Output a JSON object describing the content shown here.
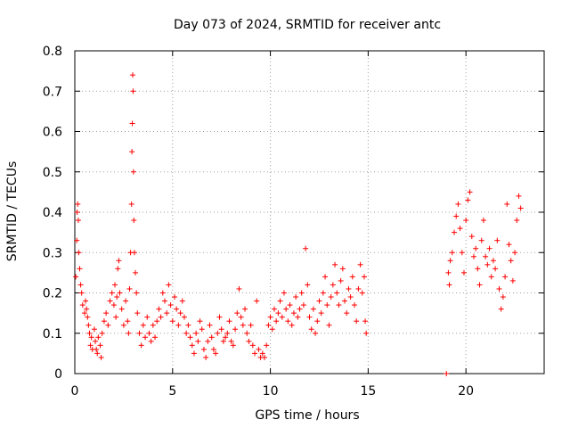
{
  "chart_data": {
    "type": "scatter",
    "title": "Day 073 of 2024, SRMTID for receiver antc",
    "xlabel": "GPS time / hours",
    "ylabel": "SRMTID / TECUs",
    "xlim": [
      0,
      24
    ],
    "ylim": [
      0,
      0.8
    ],
    "x_ticks": [
      0,
      5,
      10,
      15,
      20
    ],
    "y_ticks": [
      0,
      0.1,
      0.2,
      0.3,
      0.4,
      0.5,
      0.6,
      0.7,
      0.8
    ],
    "x_tick_labels": [
      "0",
      "5",
      "10",
      "15",
      "20"
    ],
    "y_tick_labels": [
      "0",
      "0.1",
      "0.2",
      "0.3",
      "0.4",
      "0.5",
      "0.6",
      "0.7",
      "0.8"
    ],
    "grid": true,
    "marker": "+",
    "color": "#ff0000",
    "series": [
      {
        "name": "SRMTID",
        "points": [
          [
            0.05,
            0.24
          ],
          [
            0.1,
            0.33
          ],
          [
            0.12,
            0.4
          ],
          [
            0.15,
            0.42
          ],
          [
            0.18,
            0.38
          ],
          [
            0.2,
            0.3
          ],
          [
            0.25,
            0.26
          ],
          [
            0.3,
            0.22
          ],
          [
            0.35,
            0.2
          ],
          [
            0.4,
            0.17
          ],
          [
            0.5,
            0.15
          ],
          [
            0.55,
            0.18
          ],
          [
            0.6,
            0.16
          ],
          [
            0.65,
            0.14
          ],
          [
            0.7,
            0.12
          ],
          [
            0.75,
            0.1
          ],
          [
            0.8,
            0.07
          ],
          [
            0.85,
            0.09
          ],
          [
            0.9,
            0.06
          ],
          [
            1.0,
            0.11
          ],
          [
            1.05,
            0.08
          ],
          [
            1.1,
            0.06
          ],
          [
            1.15,
            0.05
          ],
          [
            1.2,
            0.09
          ],
          [
            1.3,
            0.07
          ],
          [
            1.35,
            0.04
          ],
          [
            1.4,
            0.1
          ],
          [
            1.5,
            0.13
          ],
          [
            1.6,
            0.15
          ],
          [
            1.7,
            0.12
          ],
          [
            1.8,
            0.18
          ],
          [
            1.9,
            0.2
          ],
          [
            2.0,
            0.17
          ],
          [
            2.05,
            0.22
          ],
          [
            2.1,
            0.14
          ],
          [
            2.15,
            0.19
          ],
          [
            2.2,
            0.26
          ],
          [
            2.25,
            0.28
          ],
          [
            2.3,
            0.2
          ],
          [
            2.4,
            0.16
          ],
          [
            2.5,
            0.12
          ],
          [
            2.6,
            0.18
          ],
          [
            2.7,
            0.13
          ],
          [
            2.75,
            0.1
          ],
          [
            2.8,
            0.21
          ],
          [
            2.85,
            0.3
          ],
          [
            2.9,
            0.42
          ],
          [
            2.92,
            0.55
          ],
          [
            2.94,
            0.62
          ],
          [
            2.96,
            0.74
          ],
          [
            2.98,
            0.7
          ],
          [
            3.0,
            0.5
          ],
          [
            3.02,
            0.38
          ],
          [
            3.05,
            0.3
          ],
          [
            3.1,
            0.25
          ],
          [
            3.15,
            0.2
          ],
          [
            3.2,
            0.15
          ],
          [
            3.3,
            0.1
          ],
          [
            3.4,
            0.07
          ],
          [
            3.5,
            0.12
          ],
          [
            3.6,
            0.09
          ],
          [
            3.7,
            0.14
          ],
          [
            3.8,
            0.1
          ],
          [
            3.9,
            0.08
          ],
          [
            4.0,
            0.12
          ],
          [
            4.1,
            0.09
          ],
          [
            4.2,
            0.13
          ],
          [
            4.3,
            0.16
          ],
          [
            4.4,
            0.14
          ],
          [
            4.5,
            0.2
          ],
          [
            4.6,
            0.18
          ],
          [
            4.7,
            0.15
          ],
          [
            4.8,
            0.22
          ],
          [
            4.9,
            0.17
          ],
          [
            5.0,
            0.13
          ],
          [
            5.1,
            0.19
          ],
          [
            5.2,
            0.16
          ],
          [
            5.3,
            0.12
          ],
          [
            5.4,
            0.15
          ],
          [
            5.5,
            0.18
          ],
          [
            5.6,
            0.14
          ],
          [
            5.7,
            0.1
          ],
          [
            5.8,
            0.12
          ],
          [
            5.9,
            0.09
          ],
          [
            6.0,
            0.07
          ],
          [
            6.1,
            0.05
          ],
          [
            6.2,
            0.1
          ],
          [
            6.3,
            0.08
          ],
          [
            6.4,
            0.13
          ],
          [
            6.5,
            0.11
          ],
          [
            6.6,
            0.06
          ],
          [
            6.7,
            0.04
          ],
          [
            6.8,
            0.08
          ],
          [
            6.9,
            0.12
          ],
          [
            7.0,
            0.09
          ],
          [
            7.1,
            0.06
          ],
          [
            7.2,
            0.05
          ],
          [
            7.3,
            0.1
          ],
          [
            7.4,
            0.14
          ],
          [
            7.5,
            0.11
          ],
          [
            7.6,
            0.08
          ],
          [
            7.7,
            0.09
          ],
          [
            7.8,
            0.1
          ],
          [
            7.9,
            0.13
          ],
          [
            8.0,
            0.08
          ],
          [
            8.1,
            0.07
          ],
          [
            8.2,
            0.11
          ],
          [
            8.3,
            0.15
          ],
          [
            8.4,
            0.21
          ],
          [
            8.5,
            0.14
          ],
          [
            8.6,
            0.12
          ],
          [
            8.7,
            0.16
          ],
          [
            8.8,
            0.1
          ],
          [
            8.9,
            0.08
          ],
          [
            9.0,
            0.12
          ],
          [
            9.1,
            0.07
          ],
          [
            9.2,
            0.05
          ],
          [
            9.3,
            0.18
          ],
          [
            9.4,
            0.06
          ],
          [
            9.5,
            0.04
          ],
          [
            9.6,
            0.05
          ],
          [
            9.7,
            0.04
          ],
          [
            9.8,
            0.07
          ],
          [
            9.9,
            0.12
          ],
          [
            10.0,
            0.14
          ],
          [
            10.1,
            0.11
          ],
          [
            10.2,
            0.16
          ],
          [
            10.3,
            0.13
          ],
          [
            10.4,
            0.15
          ],
          [
            10.5,
            0.18
          ],
          [
            10.6,
            0.14
          ],
          [
            10.7,
            0.2
          ],
          [
            10.8,
            0.16
          ],
          [
            10.9,
            0.13
          ],
          [
            11.0,
            0.17
          ],
          [
            11.1,
            0.12
          ],
          [
            11.2,
            0.15
          ],
          [
            11.3,
            0.19
          ],
          [
            11.4,
            0.14
          ],
          [
            11.5,
            0.16
          ],
          [
            11.6,
            0.2
          ],
          [
            11.7,
            0.17
          ],
          [
            11.8,
            0.31
          ],
          [
            11.9,
            0.22
          ],
          [
            12.0,
            0.14
          ],
          [
            12.1,
            0.11
          ],
          [
            12.2,
            0.16
          ],
          [
            12.3,
            0.1
          ],
          [
            12.4,
            0.13
          ],
          [
            12.5,
            0.18
          ],
          [
            12.6,
            0.15
          ],
          [
            12.7,
            0.2
          ],
          [
            12.8,
            0.24
          ],
          [
            12.9,
            0.17
          ],
          [
            13.0,
            0.12
          ],
          [
            13.1,
            0.19
          ],
          [
            13.2,
            0.22
          ],
          [
            13.3,
            0.27
          ],
          [
            13.4,
            0.2
          ],
          [
            13.5,
            0.17
          ],
          [
            13.6,
            0.23
          ],
          [
            13.7,
            0.26
          ],
          [
            13.8,
            0.18
          ],
          [
            13.9,
            0.15
          ],
          [
            14.0,
            0.21
          ],
          [
            14.1,
            0.19
          ],
          [
            14.2,
            0.24
          ],
          [
            14.3,
            0.17
          ],
          [
            14.4,
            0.13
          ],
          [
            14.5,
            0.21
          ],
          [
            14.6,
            0.27
          ],
          [
            14.7,
            0.2
          ],
          [
            14.8,
            0.24
          ],
          [
            14.85,
            0.13
          ],
          [
            14.9,
            0.1
          ],
          [
            19.0,
            0.0
          ],
          [
            19.1,
            0.25
          ],
          [
            19.15,
            0.22
          ],
          [
            19.2,
            0.28
          ],
          [
            19.3,
            0.3
          ],
          [
            19.4,
            0.35
          ],
          [
            19.5,
            0.39
          ],
          [
            19.6,
            0.42
          ],
          [
            19.7,
            0.36
          ],
          [
            19.8,
            0.3
          ],
          [
            19.9,
            0.25
          ],
          [
            20.0,
            0.38
          ],
          [
            20.1,
            0.43
          ],
          [
            20.2,
            0.45
          ],
          [
            20.3,
            0.34
          ],
          [
            20.4,
            0.29
          ],
          [
            20.5,
            0.31
          ],
          [
            20.6,
            0.26
          ],
          [
            20.7,
            0.22
          ],
          [
            20.8,
            0.33
          ],
          [
            20.9,
            0.38
          ],
          [
            21.0,
            0.29
          ],
          [
            21.1,
            0.27
          ],
          [
            21.2,
            0.31
          ],
          [
            21.3,
            0.24
          ],
          [
            21.4,
            0.28
          ],
          [
            21.5,
            0.26
          ],
          [
            21.6,
            0.33
          ],
          [
            21.7,
            0.21
          ],
          [
            21.8,
            0.16
          ],
          [
            21.9,
            0.19
          ],
          [
            22.0,
            0.24
          ],
          [
            22.1,
            0.42
          ],
          [
            22.2,
            0.32
          ],
          [
            22.3,
            0.28
          ],
          [
            22.4,
            0.23
          ],
          [
            22.5,
            0.3
          ],
          [
            22.6,
            0.38
          ],
          [
            22.7,
            0.44
          ],
          [
            22.8,
            0.41
          ]
        ]
      }
    ]
  }
}
